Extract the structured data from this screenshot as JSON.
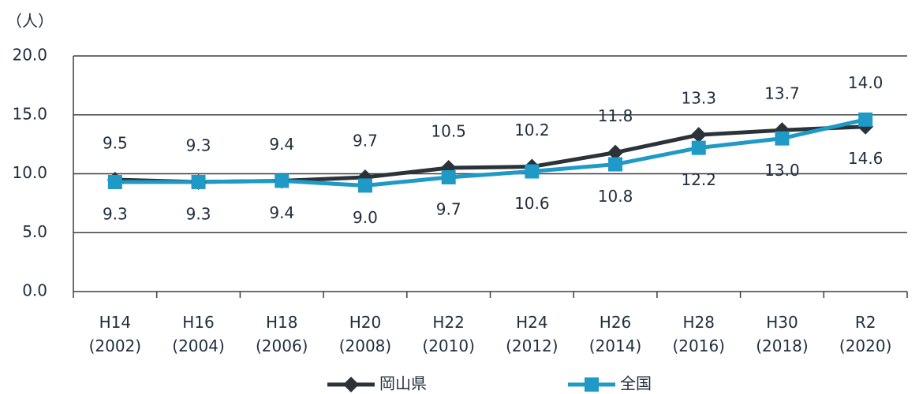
{
  "chart_data": {
    "type": "line",
    "y_label": "（人）",
    "categories": [
      [
        "H14",
        "(2002)"
      ],
      [
        "H16",
        "(2004)"
      ],
      [
        "H18",
        "(2006)"
      ],
      [
        "H20",
        "(2008)"
      ],
      [
        "H22",
        "(2010)"
      ],
      [
        "H24",
        "(2012)"
      ],
      [
        "H26",
        "(2014)"
      ],
      [
        "H28",
        "(2016)"
      ],
      [
        "H30",
        "(2018)"
      ],
      [
        "R2",
        "(2020)"
      ]
    ],
    "series": [
      {
        "name": "岡山県",
        "color": "#2b3238",
        "marker": "diamond",
        "values": [
          9.5,
          9.3,
          9.4,
          9.7,
          10.5,
          10.6,
          11.8,
          13.3,
          13.7,
          14.0
        ],
        "value_labels": [
          "9.5",
          "9.3",
          "9.4",
          "9.7",
          "10.5",
          "10.6",
          "11.8",
          "13.3",
          "13.7",
          "14.0"
        ]
      },
      {
        "name": "全国",
        "color": "#1f9ac6",
        "marker": "square",
        "values": [
          9.3,
          9.3,
          9.4,
          9.0,
          9.7,
          10.2,
          10.8,
          12.2,
          13.0,
          14.6
        ],
        "value_labels": [
          "9.3",
          "9.3",
          "9.4",
          "9.0",
          "9.7",
          "10.2",
          "10.8",
          "12.2",
          "13.0",
          "14.6"
        ]
      }
    ],
    "ylim": [
      0,
      20
    ],
    "yticks": [
      {
        "value": 0,
        "label": "0.0"
      },
      {
        "value": 5,
        "label": "5.0"
      },
      {
        "value": 10,
        "label": "10.0"
      },
      {
        "value": 15,
        "label": "15.0"
      },
      {
        "value": 20,
        "label": "20.0"
      }
    ],
    "grid": true
  }
}
